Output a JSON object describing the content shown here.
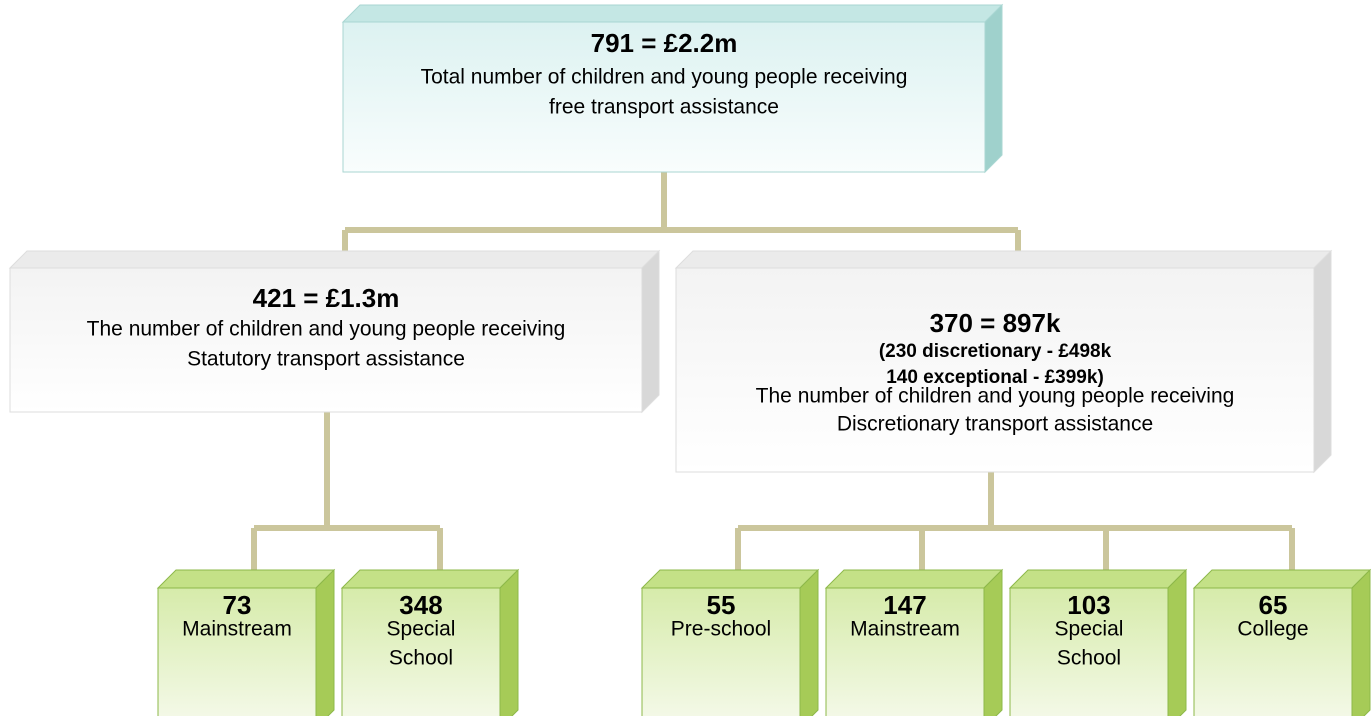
{
  "nodes": [
    {
      "headline": "791 = £2.2m",
      "lines": [
        "Total number of children and young people receiving",
        "free transport assistance"
      ]
    },
    {
      "headline": "421 = £1.3m",
      "lines": [
        "The number of children and young people receiving",
        "Statutory transport assistance"
      ]
    },
    {
      "headline": "370 = 897k",
      "details": [
        "(230 discretionary - £498k",
        "140 exceptional - £399k)"
      ],
      "lines": [
        "The number of children and young people receiving",
        "Discretionary transport assistance"
      ]
    },
    {
      "headline": "73",
      "lines": [
        "Mainstream"
      ]
    },
    {
      "headline": "348",
      "lines": [
        "Special",
        "School"
      ]
    },
    {
      "headline": "55",
      "lines": [
        "Pre-school"
      ]
    },
    {
      "headline": "147",
      "lines": [
        "Mainstream"
      ]
    },
    {
      "headline": "103",
      "lines": [
        "Special",
        "School"
      ]
    },
    {
      "headline": "65",
      "lines": [
        "College"
      ]
    }
  ]
}
